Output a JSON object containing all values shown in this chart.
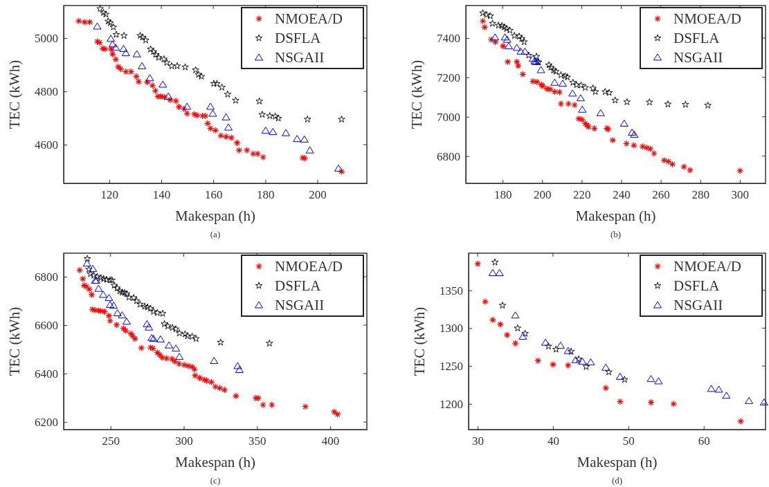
{
  "chart_data": [
    {
      "type": "scatter",
      "xlabel": "Makespan (h)",
      "ylabel": "TEC (kWh)",
      "annotations": [
        "(a)"
      ],
      "xlim": [
        102.5,
        219
      ],
      "ylim": [
        4455,
        5122
      ],
      "xticks": [
        120,
        140,
        160,
        180,
        200
      ],
      "yticks": [
        4600,
        4800,
        5000
      ],
      "legend": "top right",
      "grid": false,
      "series": [
        {
          "name": "NMOEA/D",
          "color": "#ff0000",
          "marker": "cross",
          "x": [
            108.3,
            110.5,
            112.5,
            115.4,
            116.3,
            117.5,
            118.4,
            120.7,
            121.3,
            122.5,
            123.5,
            124.4,
            126.4,
            128.4,
            130.4,
            131.3,
            134.6,
            136.6,
            137.7,
            138.7,
            139.9,
            141.2,
            143.4,
            145.6,
            146.8,
            148.7,
            149.9,
            152.7,
            153.8,
            155.8,
            157.0,
            157.8,
            158.9,
            160.8,
            162.9,
            164.9,
            166.9,
            169.1,
            169.9,
            172.9,
            175.3,
            177.0,
            179.1,
            194.3,
            195.1,
            209.3
          ],
          "values": [
            5064,
            5060,
            5060,
            4987,
            4983,
            4961,
            4959,
            4959,
            4940,
            4920,
            4892,
            4884,
            4874,
            4874,
            4856,
            4837,
            4835,
            4822,
            4802,
            4781,
            4781,
            4779,
            4768,
            4764,
            4742,
            4734,
            4717,
            4714,
            4710,
            4708,
            4708,
            4680,
            4661,
            4654,
            4634,
            4630,
            4626,
            4607,
            4579,
            4579,
            4566,
            4566,
            4553,
            4551,
            4549,
            4499
          ]
        },
        {
          "name": "DSFLA",
          "color": "#000000",
          "marker": "star",
          "x": [
            116.5,
            117.8,
            118.7,
            119.6,
            120.4,
            121.6,
            122.7,
            125.7,
            131.9,
            132.8,
            134.0,
            135.9,
            137.0,
            137.9,
            139.0,
            141.0,
            142.1,
            144.0,
            146.1,
            149.2,
            153.2,
            154.3,
            155.4,
            160.2,
            161.4,
            163.3,
            165.5,
            168.6,
            177.7,
            178.8,
            181.7,
            183.8,
            185.0,
            196.2,
            209.3
          ],
          "values": [
            5110,
            5095,
            5089,
            5063,
            5057,
            5041,
            5013,
            5009,
            5009,
            5003,
            4992,
            4958,
            4949,
            4938,
            4927,
            4921,
            4908,
            4895,
            4895,
            4891,
            4880,
            4863,
            4856,
            4829,
            4829,
            4815,
            4789,
            4766,
            4763,
            4713,
            4708,
            4706,
            4699,
            4695,
            4695
          ]
        },
        {
          "name": "NSGAII",
          "color": "#0000ff",
          "marker": "triangle",
          "x": [
            115.4,
            120.6,
            121.3,
            122.5,
            125.5,
            126.4,
            130.6,
            132.6,
            135.6,
            140.6,
            142.7,
            149.9,
            158.9,
            159.8,
            164.9,
            165.8,
            180.1,
            182.9,
            187.9,
            192.2,
            195.0,
            197.1,
            208.1
          ],
          "values": [
            5044,
            4998,
            4977,
            4964,
            4960,
            4944,
            4940,
            4895,
            4850,
            4826,
            4781,
            4743,
            4743,
            4717,
            4703,
            4665,
            4653,
            4648,
            4644,
            4622,
            4620,
            4579,
            4511
          ]
        }
      ]
    },
    {
      "type": "scatter",
      "xlabel": "Makespan (h)",
      "ylabel": "TEC (kWh)",
      "annotations": [
        "(b)"
      ],
      "xlim": [
        161.4,
        313
      ],
      "ylim": [
        6662,
        7565
      ],
      "xticks": [
        180,
        200,
        220,
        240,
        260,
        280,
        300
      ],
      "yticks": [
        6800,
        7000,
        7200,
        7400
      ],
      "legend": "top right",
      "grid": false,
      "series": [
        {
          "name": "NMOEA/D",
          "color": "#ff0000",
          "marker": "cross",
          "x": [
            170.0,
            170.9,
            174.2,
            176.3,
            180.2,
            182.6,
            187.2,
            187.9,
            190.2,
            195.3,
            197.4,
            199.7,
            200.2,
            202.5,
            204.1,
            206.4,
            208.8,
            209.5,
            213.3,
            216.4,
            218.5,
            220.2,
            221.8,
            222.6,
            223.4,
            226.4,
            232.7,
            233.4,
            235.7,
            242.6,
            246.4,
            250.8,
            252.8,
            254.7,
            256.6,
            261.7,
            263.8,
            265.9,
            271.7,
            274.8,
            300.1
          ],
          "values": [
            7486,
            7455,
            7392,
            7380,
            7359,
            7279,
            7279,
            7259,
            7216,
            7180,
            7177,
            7162,
            7156,
            7142,
            7140,
            7127,
            7125,
            7066,
            7066,
            7060,
            6990,
            6986,
            6966,
            6958,
            6949,
            6941,
            6941,
            6937,
            6881,
            6864,
            6855,
            6849,
            6843,
            6837,
            6814,
            6779,
            6773,
            6759,
            6746,
            6729,
            6726
          ]
        },
        {
          "name": "DSFLA",
          "color": "#000000",
          "marker": "star",
          "x": [
            170.0,
            171.9,
            173.8,
            174.9,
            177.9,
            179.7,
            180.8,
            182.0,
            183.7,
            186.0,
            188.4,
            189.7,
            190.9,
            193.2,
            197.1,
            197.6,
            198.2,
            203.4,
            204.4,
            205.8,
            206.9,
            209.5,
            211.6,
            212.7,
            215.6,
            217.4,
            219.7,
            221.8,
            225.7,
            226.9,
            231.9,
            233.9,
            236.9,
            242.9,
            254.3,
            263.6,
            272.5,
            283.8
          ],
          "values": [
            7527,
            7518,
            7512,
            7474,
            7464,
            7462,
            7455,
            7447,
            7439,
            7412,
            7408,
            7396,
            7380,
            7312,
            7306,
            7279,
            7277,
            7263,
            7251,
            7236,
            7230,
            7212,
            7207,
            7201,
            7174,
            7162,
            7160,
            7148,
            7145,
            7127,
            7127,
            7122,
            7084,
            7075,
            7074,
            7064,
            7062,
            7058
          ]
        },
        {
          "name": "NSGAII",
          "color": "#0000ff",
          "marker": "triangle",
          "x": [
            176.2,
            181.2,
            182.3,
            183.1,
            187.2,
            189.2,
            191.3,
            195.3,
            196.2,
            196.8,
            199.4,
            206.3,
            210.4,
            215.4,
            219.5,
            220.3,
            229.6,
            241.5,
            245.5,
            246.6
          ],
          "values": [
            7404,
            7404,
            7392,
            7359,
            7351,
            7332,
            7332,
            7295,
            7283,
            7279,
            7238,
            7174,
            7169,
            7119,
            7095,
            7037,
            7019,
            6966,
            6920,
            6910
          ]
        }
      ]
    },
    {
      "type": "scatter",
      "xlabel": "Makespan (h)",
      "ylabel": "TEC (kWh)",
      "annotations": [
        "(c)"
      ],
      "xlim": [
        218,
        425
      ],
      "ylim": [
        6169,
        6897
      ],
      "xticks": [
        250,
        300,
        350,
        400
      ],
      "yticks": [
        6200,
        6400,
        6600,
        6800
      ],
      "legend": "top right",
      "grid": false,
      "series": [
        {
          "name": "NMOEA/D",
          "color": "#ff0000",
          "marker": "cross",
          "x": [
            228.9,
            231.1,
            231.9,
            233.6,
            235.5,
            237.1,
            237.5,
            239.4,
            241.8,
            243.4,
            245.7,
            248.9,
            249.7,
            254.1,
            258.8,
            260.4,
            263.9,
            265.1,
            266.7,
            271.0,
            277.3,
            278.9,
            282.0,
            283.6,
            285.2,
            288.3,
            292.0,
            293.8,
            296.7,
            300.2,
            303.0,
            305.7,
            307.3,
            307.7,
            310.9,
            314.0,
            315.6,
            318.8,
            321.5,
            324.6,
            327.8,
            335.6,
            349.1,
            350.9,
            354.1,
            360.1,
            383.0,
            402.7,
            405.0
          ],
          "values": [
            6827,
            6791,
            6764,
            6760,
            6748,
            6726,
            6665,
            6662,
            6660,
            6658,
            6656,
            6639,
            6618,
            6601,
            6586,
            6577,
            6565,
            6555,
            6544,
            6506,
            6508,
            6504,
            6487,
            6477,
            6466,
            6463,
            6460,
            6451,
            6441,
            6436,
            6432,
            6428,
            6418,
            6392,
            6382,
            6375,
            6371,
            6365,
            6346,
            6340,
            6333,
            6308,
            6299,
            6299,
            6271,
            6271,
            6264,
            6242,
            6232
          ]
        },
        {
          "name": "DSFLA",
          "color": "#000000",
          "marker": "star",
          "x": [
            234.2,
            235.2,
            236.3,
            238.6,
            241.0,
            243.4,
            245.3,
            247.3,
            249.7,
            250.9,
            252.5,
            254.4,
            256.3,
            257.9,
            259.5,
            261.0,
            262.6,
            265.8,
            267.8,
            270.2,
            273.3,
            275.2,
            277.3,
            279.3,
            282.0,
            285.6,
            286.8,
            289.1,
            292.3,
            294.6,
            297.0,
            300.9,
            302.5,
            305.7,
            308.4,
            325.1,
            358.5
          ],
          "values": [
            6874,
            6830,
            6811,
            6805,
            6800,
            6795,
            6791,
            6788,
            6786,
            6786,
            6764,
            6753,
            6740,
            6735,
            6734,
            6729,
            6715,
            6713,
            6700,
            6686,
            6677,
            6674,
            6669,
            6656,
            6651,
            6648,
            6605,
            6596,
            6589,
            6584,
            6567,
            6563,
            6555,
            6553,
            6544,
            6529,
            6525
          ]
        },
        {
          "name": "NSGAII",
          "color": "#0000ff",
          "marker": "triangle",
          "x": [
            233.9,
            237.9,
            239.5,
            240.2,
            241.8,
            245.0,
            248.9,
            249.7,
            252.1,
            254.7,
            257.9,
            261.0,
            274.9,
            276.2,
            278.1,
            279.3,
            284.1,
            289.9,
            294.6,
            297.0,
            320.7,
            336.8,
            338.0
          ],
          "values": [
            6855,
            6833,
            6784,
            6784,
            6751,
            6726,
            6713,
            6684,
            6681,
            6650,
            6641,
            6615,
            6605,
            6591,
            6548,
            6544,
            6542,
            6517,
            6504,
            6470,
            6453,
            6432,
            6416
          ]
        }
      ]
    },
    {
      "type": "scatter",
      "xlabel": "Makespan (h)",
      "ylabel": "TEC (kWh)",
      "annotations": [
        "(d)"
      ],
      "xlim": [
        28.8,
        68.2
      ],
      "ylim": [
        1166,
        1399
      ],
      "xticks": [
        30,
        40,
        50,
        60
      ],
      "yticks": [
        1200,
        1250,
        1300,
        1350
      ],
      "legend": "top right",
      "grid": false,
      "series": [
        {
          "name": "NMOEA/D",
          "color": "#ff0000",
          "marker": "cross",
          "x": [
            30.0,
            31.0,
            32.0,
            33.0,
            33.9,
            35.0,
            38.0,
            40.0,
            42.0,
            47.0,
            48.9,
            53.0,
            56.0,
            64.9
          ],
          "values": [
            1385,
            1335,
            1311,
            1305,
            1291,
            1280,
            1257,
            1252,
            1251,
            1221,
            1203,
            1202,
            1200,
            1177
          ]
        },
        {
          "name": "DSFLA",
          "color": "#000000",
          "marker": "star",
          "x": [
            32.3,
            33.3,
            35.3,
            36.3,
            39.4,
            40.4,
            42.4,
            43.4,
            44.4,
            47.4,
            49.5
          ],
          "values": [
            1387,
            1330,
            1300,
            1293,
            1276,
            1272,
            1269,
            1259,
            1249,
            1242,
            1232
          ]
        },
        {
          "name": "NSGAII",
          "color": "#0000ff",
          "marker": "triangle",
          "x": [
            32.0,
            32.9,
            35.0,
            36.0,
            39.0,
            41.0,
            42.0,
            43.0,
            43.9,
            45.0,
            47.0,
            48.9,
            53.0,
            54.0,
            61.0,
            62.0,
            63.0,
            66.0,
            68.0
          ],
          "values": [
            1373,
            1373,
            1317,
            1289,
            1281,
            1277,
            1270,
            1258,
            1256,
            1255,
            1248,
            1236,
            1233,
            1230,
            1220,
            1219,
            1211,
            1204,
            1202
          ]
        }
      ]
    }
  ]
}
